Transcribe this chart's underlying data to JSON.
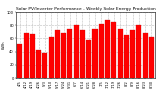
{
  "title": "Solar PV/Inverter Performance - Weekly Solar Energy Production",
  "ylabel": "kWh",
  "bar_color": "#ff0000",
  "edge_color": "#cc0000",
  "bg_color": "#ffffff",
  "plot_bg": "#ffffff",
  "grid_color": "#bbbbbb",
  "weeks": [
    "4/5",
    "4/12",
    "4/19",
    "4/26",
    "5/3",
    "5/10",
    "5/17",
    "5/24",
    "5/31",
    "6/7",
    "6/14",
    "6/21",
    "6/28",
    "7/5",
    "7/12",
    "7/19",
    "7/26",
    "8/2",
    "8/9",
    "8/16",
    "8/23",
    "8/30"
  ],
  "values": [
    52,
    68,
    66,
    42,
    38,
    62,
    72,
    68,
    75,
    80,
    72,
    58,
    75,
    82,
    88,
    85,
    75,
    65,
    72,
    80,
    68,
    62
  ],
  "ylim": [
    0,
    100
  ],
  "yticks": [
    0,
    20,
    40,
    60,
    80,
    100
  ],
  "title_fontsize": 3.2,
  "axis_fontsize": 2.8,
  "tick_fontsize": 2.6
}
